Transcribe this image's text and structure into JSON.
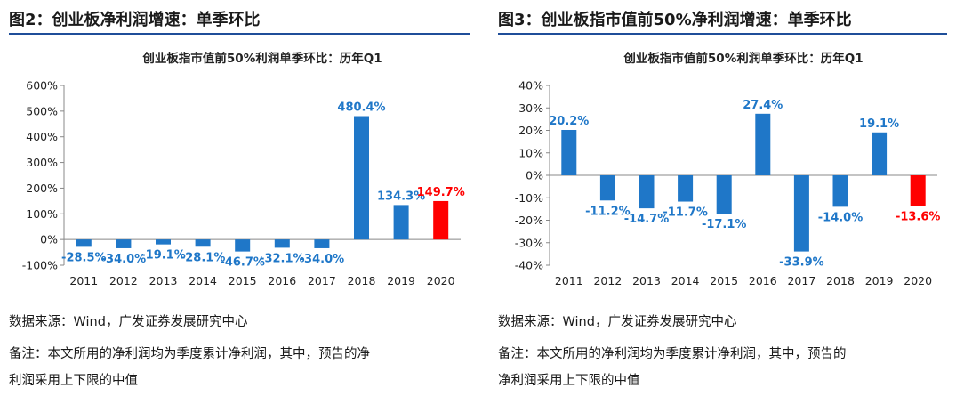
{
  "panels": [
    {
      "figure_title": "图2：创业板净利润增速：单季环比",
      "source": "数据来源：Wind，广发证券发展研究中心",
      "note_line1": "备注：本文所用的净利润均为季度累计净利润，其中，预告的净",
      "note_line2": "利润采用上下限的中值"
    },
    {
      "figure_title": "图3：创业板指市值前50%净利润增速：单季环比",
      "source": "数据来源：Wind，广发证券发展研究中心",
      "note_line1": "备注：本文所用的净利润均为季度累计净利润，其中，预告的",
      "note_line2": "净利润采用上下限的中值"
    }
  ],
  "colors": {
    "bar": "#1f77c8",
    "bar_highlight": "#ff0000",
    "label": "#1f77c8",
    "label_highlight": "#ff0000",
    "rule": "#1f4e99"
  },
  "chart_data": [
    {
      "type": "bar",
      "title": "创业板指市值前50%利润单季环比：历年Q1",
      "categories": [
        "2011",
        "2012",
        "2013",
        "2014",
        "2015",
        "2016",
        "2017",
        "2018",
        "2019",
        "2020"
      ],
      "values": [
        -28.5,
        -34.0,
        -19.1,
        -28.1,
        -46.7,
        -32.1,
        -34.0,
        480.4,
        134.3,
        149.7
      ],
      "data_labels": [
        "-28.5%",
        "-34.0%",
        "-19.1%",
        "-28.1%",
        "-46.7%",
        "-32.1%",
        "-34.0%",
        "480.4%",
        "134.3%",
        "149.7%"
      ],
      "highlight_index": 9,
      "ylim": [
        -100,
        600
      ],
      "yticks": [
        -100,
        0,
        100,
        200,
        300,
        400,
        500,
        600
      ],
      "ytick_labels": [
        "-100%",
        "0%",
        "100%",
        "200%",
        "300%",
        "400%",
        "500%",
        "600%"
      ],
      "grid": false,
      "legend": "none"
    },
    {
      "type": "bar",
      "title": "创业板指市值前50%利润单季环比：历年Q1",
      "categories": [
        "2011",
        "2012",
        "2013",
        "2014",
        "2015",
        "2016",
        "2017",
        "2018",
        "2019",
        "2020"
      ],
      "values": [
        20.2,
        -11.2,
        -14.7,
        -11.7,
        -17.1,
        27.4,
        -33.9,
        -14.0,
        19.1,
        -13.6
      ],
      "data_labels": [
        "20.2%",
        "-11.2%",
        "-14.7%",
        "-11.7%",
        "-17.1%",
        "27.4%",
        "-33.9%",
        "-14.0%",
        "19.1%",
        "-13.6%"
      ],
      "highlight_index": 9,
      "ylim": [
        -40,
        40
      ],
      "yticks": [
        -40,
        -30,
        -20,
        -10,
        0,
        10,
        20,
        30,
        40
      ],
      "ytick_labels": [
        "-40%",
        "-30%",
        "-20%",
        "-10%",
        "0%",
        "10%",
        "20%",
        "30%",
        "40%"
      ],
      "grid": false,
      "legend": "none"
    }
  ]
}
